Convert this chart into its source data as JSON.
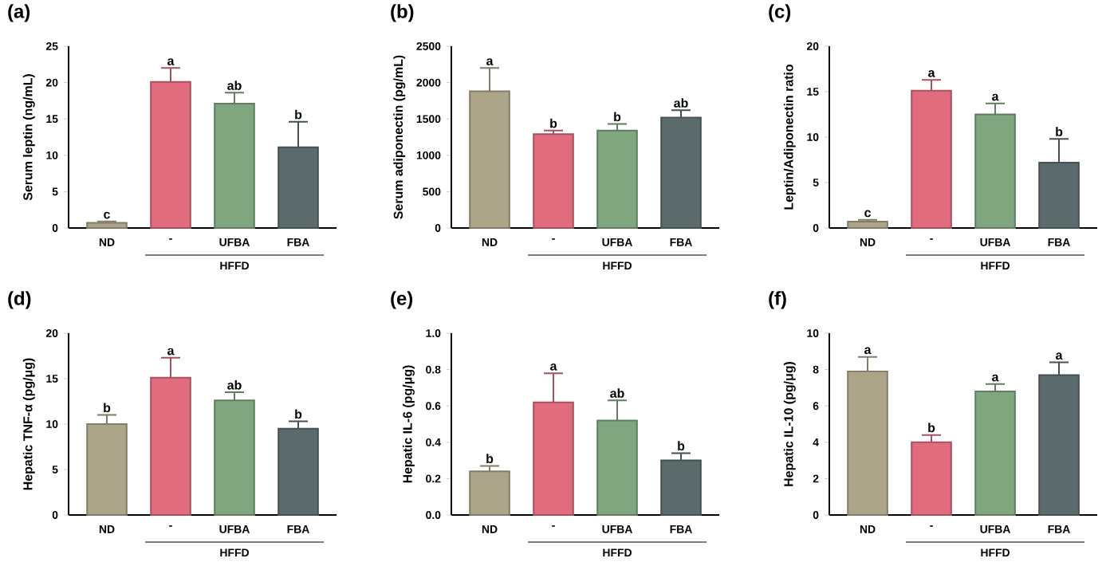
{
  "chart_data": [
    {
      "type": "bar",
      "title": "(a)",
      "ylabel": "Serum leptin (ng/mL)",
      "categories": [
        "ND",
        "-",
        "UFBA",
        "FBA"
      ],
      "values": [
        0.7,
        20.1,
        17.1,
        11.1
      ],
      "colors": [
        "#aca58a",
        "#e06c7d",
        "#80a680",
        "#5b6b6c"
      ],
      "errors": [
        [
          0.7,
          0.9
        ],
        [
          20.1,
          22
        ],
        [
          17.1,
          18.6
        ],
        [
          11.1,
          14.6
        ]
      ],
      "ylim": [
        0,
        25
      ],
      "yticks": [
        0,
        5,
        10,
        15,
        20,
        25
      ],
      "annotations": [
        {
          "text": "c",
          "x": "ND",
          "y": 0.9
        },
        {
          "text": "a",
          "x": "-",
          "y": 22
        },
        {
          "text": "ab",
          "x": "UFBA",
          "y": 18.6
        },
        {
          "text": "b",
          "x": "FBA",
          "y": 14.6
        },
        "HFFD"
      ]
    },
    {
      "type": "bar",
      "title": "(b)",
      "ylabel": "Serum adiponectin (pg/mL)",
      "categories": [
        "ND",
        "-",
        "UFBA",
        "FBA"
      ],
      "values": [
        1880,
        1290,
        1340,
        1520
      ],
      "colors": [
        "#aca58a",
        "#e06c7d",
        "#80a680",
        "#5b6b6c"
      ],
      "errors": [
        [
          1880,
          2200
        ],
        [
          1290,
          1340
        ],
        [
          1340,
          1430
        ],
        [
          1520,
          1620
        ]
      ],
      "ylim": [
        0,
        2500
      ],
      "yticks": [
        0,
        500,
        1000,
        1500,
        2000,
        2500
      ],
      "annotations": [
        {
          "text": "a",
          "x": "ND",
          "y": 2200
        },
        {
          "text": "b",
          "x": "-",
          "y": 1340
        },
        {
          "text": "b",
          "x": "UFBA",
          "y": 1430
        },
        {
          "text": "ab",
          "x": "FBA",
          "y": 1620
        },
        "HFFD"
      ]
    },
    {
      "type": "bar",
      "title": "(c)",
      "ylabel": "Leptin/Adiponectin ratio",
      "categories": [
        "ND",
        "-",
        "UFBA",
        "FBA"
      ],
      "values": [
        0.7,
        15.1,
        12.5,
        7.2
      ],
      "colors": [
        "#aca58a",
        "#e06c7d",
        "#80a680",
        "#5b6b6c"
      ],
      "errors": [
        [
          0.7,
          0.9
        ],
        [
          15.1,
          16.3
        ],
        [
          12.5,
          13.7
        ],
        [
          7.2,
          9.8
        ]
      ],
      "ylim": [
        0,
        20
      ],
      "yticks": [
        0,
        5,
        10,
        15,
        20
      ],
      "annotations": [
        {
          "text": "c",
          "x": "ND",
          "y": 0.9
        },
        {
          "text": "a",
          "x": "-",
          "y": 16.3
        },
        {
          "text": "a",
          "x": "UFBA",
          "y": 13.7
        },
        {
          "text": "b",
          "x": "FBA",
          "y": 9.8
        },
        "HFFD"
      ]
    },
    {
      "type": "bar",
      "title": "(d)",
      "ylabel": "Hepatic TNF-α (pg/μg)",
      "categories": [
        "ND",
        "-",
        "UFBA",
        "FBA"
      ],
      "values": [
        10.0,
        15.1,
        12.6,
        9.5
      ],
      "colors": [
        "#aca58a",
        "#e06c7d",
        "#80a680",
        "#5b6b6c"
      ],
      "errors": [
        [
          10.0,
          11.0
        ],
        [
          15.1,
          17.3
        ],
        [
          12.6,
          13.5
        ],
        [
          9.5,
          10.3
        ]
      ],
      "ylim": [
        0,
        20
      ],
      "yticks": [
        0,
        5,
        10,
        15,
        20
      ],
      "annotations": [
        {
          "text": "b",
          "x": "ND",
          "y": 11.0
        },
        {
          "text": "a",
          "x": "-",
          "y": 17.3
        },
        {
          "text": "ab",
          "x": "UFBA",
          "y": 13.5
        },
        {
          "text": "b",
          "x": "FBA",
          "y": 10.3
        },
        "HFFD"
      ]
    },
    {
      "type": "bar",
      "title": "(e)",
      "ylabel": "Hepatic IL-6 (pg/μg)",
      "categories": [
        "ND",
        "-",
        "UFBA",
        "FBA"
      ],
      "values": [
        0.24,
        0.62,
        0.52,
        0.3
      ],
      "colors": [
        "#aca58a",
        "#e06c7d",
        "#80a680",
        "#5b6b6c"
      ],
      "errors": [
        [
          0.24,
          0.27
        ],
        [
          0.62,
          0.78
        ],
        [
          0.52,
          0.63
        ],
        [
          0.3,
          0.34
        ]
      ],
      "ylim": [
        0,
        1.0
      ],
      "yticks": [
        {
          "value": 0,
          "label": "0.0"
        },
        0.2,
        0.4,
        0.6,
        0.8,
        {
          "value": 1.0,
          "label": "1.0"
        }
      ],
      "annotations": [
        {
          "text": "b",
          "x": "ND",
          "y": 0.27
        },
        {
          "text": "a",
          "x": "-",
          "y": 0.78
        },
        {
          "text": "ab",
          "x": "UFBA",
          "y": 0.63
        },
        {
          "text": "b",
          "x": "FBA",
          "y": 0.34
        },
        "HFFD"
      ]
    },
    {
      "type": "bar",
      "title": "(f)",
      "ylabel": "Hepatic IL-10 (pg/μg)",
      "categories": [
        "ND",
        "-",
        "UFBA",
        "FBA"
      ],
      "values": [
        7.9,
        4.0,
        6.8,
        7.7
      ],
      "colors": [
        "#aca58a",
        "#e06c7d",
        "#80a680",
        "#5b6b6c"
      ],
      "errors": [
        [
          7.9,
          8.7
        ],
        [
          4.0,
          4.4
        ],
        [
          6.8,
          7.2
        ],
        [
          7.7,
          8.4
        ]
      ],
      "ylim": [
        0,
        10
      ],
      "yticks": [
        0,
        2,
        4,
        6,
        8,
        10
      ],
      "annotations": [
        {
          "text": "a",
          "x": "ND",
          "y": 8.7
        },
        {
          "text": "b",
          "x": "-",
          "y": 4.4
        },
        {
          "text": "a",
          "x": "UFBA",
          "y": 7.2
        },
        {
          "text": "a",
          "x": "FBA",
          "y": 8.4
        },
        "HFFD"
      ]
    }
  ]
}
